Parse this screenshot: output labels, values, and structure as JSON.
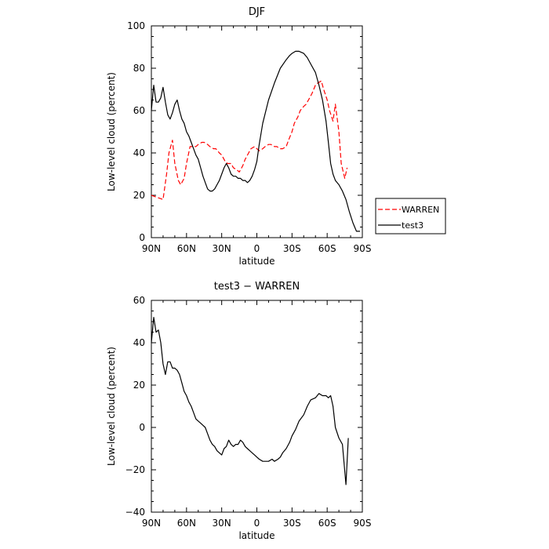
{
  "chart_data": [
    {
      "type": "line",
      "title": "DJF",
      "xlabel": "latitude",
      "ylabel": "Low-level cloud (percent)",
      "xlim": [
        90,
        -90
      ],
      "ylim": [
        0,
        100
      ],
      "x_ticks": [
        90,
        60,
        30,
        0,
        -30,
        -60,
        -90
      ],
      "x_tick_labels": [
        "90N",
        "60N",
        "30N",
        "0",
        "30S",
        "60S",
        "90S"
      ],
      "y_ticks": [
        0,
        20,
        40,
        60,
        80,
        100
      ],
      "y_tick_labels": [
        "0",
        "20",
        "40",
        "60",
        "80",
        "100"
      ],
      "grid": false,
      "legend": {
        "placement": "right-outside",
        "entries": [
          "WARREN",
          "test3"
        ]
      },
      "series": [
        {
          "name": "WARREN",
          "color": "#ff0000",
          "dash": "dashed",
          "x": [
            90,
            85,
            80,
            77,
            75,
            72,
            70,
            67,
            65,
            62,
            60,
            57,
            55,
            52,
            50,
            47,
            45,
            42,
            40,
            37,
            35,
            32,
            30,
            27,
            25,
            22,
            20,
            17,
            15,
            12,
            10,
            7,
            5,
            2,
            0,
            -2,
            -5,
            -7,
            -10,
            -12,
            -15,
            -17,
            -20,
            -22,
            -25,
            -27,
            -30,
            -32,
            -35,
            -37,
            -40,
            -42,
            -45,
            -47,
            -50,
            -52,
            -55,
            -57,
            -60,
            -62,
            -65,
            -67,
            -70,
            -72,
            -75,
            -77
          ],
          "y": [
            20,
            19,
            18,
            30,
            40,
            46,
            35,
            27,
            25,
            28,
            35,
            43,
            43,
            43,
            44,
            45,
            45,
            44,
            43,
            42,
            42,
            40,
            39,
            36,
            35,
            35,
            33,
            32,
            31,
            34,
            37,
            40,
            42,
            43,
            42,
            41,
            42,
            43,
            44,
            44,
            43,
            43,
            42,
            42,
            43,
            46,
            50,
            54,
            57,
            60,
            62,
            63,
            66,
            68,
            72,
            73,
            74,
            70,
            65,
            60,
            55,
            63,
            50,
            35,
            28,
            33
          ]
        },
        {
          "name": "test3",
          "color": "#000000",
          "dash": "solid",
          "x": [
            90,
            88,
            86,
            84,
            82,
            80,
            78,
            76,
            74,
            72,
            70,
            68,
            66,
            64,
            62,
            60,
            58,
            56,
            54,
            52,
            50,
            48,
            46,
            44,
            42,
            40,
            38,
            36,
            34,
            32,
            30,
            28,
            26,
            24,
            22,
            20,
            18,
            16,
            14,
            12,
            10,
            8,
            6,
            4,
            2,
            0,
            -2,
            -5,
            -10,
            -15,
            -20,
            -25,
            -28,
            -30,
            -33,
            -36,
            -40,
            -43,
            -46,
            -50,
            -53,
            -56,
            -59,
            -61,
            -63,
            -65,
            -67,
            -70,
            -73,
            -76,
            -79,
            -82,
            -85,
            -88
          ],
          "y": [
            60,
            72,
            64,
            64,
            66,
            71,
            64,
            58,
            56,
            59,
            63,
            65,
            60,
            56,
            54,
            50,
            48,
            45,
            42,
            39,
            37,
            33,
            29,
            26,
            23,
            22,
            22,
            23,
            25,
            27,
            30,
            33,
            35,
            33,
            30,
            29,
            29,
            28,
            28,
            27,
            27,
            26,
            27,
            29,
            32,
            36,
            44,
            54,
            65,
            73,
            80,
            84,
            86,
            87,
            88,
            88,
            87,
            85,
            82,
            78,
            72,
            65,
            55,
            45,
            35,
            30,
            27,
            25,
            22,
            18,
            12,
            7,
            3,
            3
          ]
        }
      ]
    },
    {
      "type": "line",
      "title": "test3 − WARREN",
      "xlabel": "latitude",
      "ylabel": "Low-level cloud (percent)",
      "xlim": [
        90,
        -90
      ],
      "ylim": [
        -40,
        60
      ],
      "x_ticks": [
        90,
        60,
        30,
        0,
        -30,
        -60,
        -90
      ],
      "x_tick_labels": [
        "90N",
        "60N",
        "30N",
        "0",
        "30S",
        "60S",
        "90S"
      ],
      "y_ticks": [
        -40,
        -20,
        0,
        20,
        40,
        60
      ],
      "y_tick_labels": [
        "−40",
        "−20",
        "0",
        "20",
        "40",
        "60"
      ],
      "grid": false,
      "series": [
        {
          "color": "#000000",
          "dash": "solid",
          "x": [
            90,
            88,
            86,
            84,
            82,
            80,
            78,
            76,
            74,
            72,
            70,
            68,
            66,
            64,
            62,
            60,
            58,
            56,
            54,
            52,
            50,
            48,
            46,
            44,
            42,
            40,
            38,
            36,
            34,
            32,
            30,
            28,
            26,
            24,
            22,
            20,
            18,
            16,
            14,
            12,
            10,
            8,
            6,
            4,
            2,
            0,
            -2,
            -5,
            -8,
            -10,
            -13,
            -15,
            -18,
            -20,
            -22,
            -25,
            -28,
            -30,
            -33,
            -36,
            -40,
            -43,
            -46,
            -50,
            -53,
            -56,
            -59,
            -61,
            -63,
            -65,
            -67,
            -70,
            -73,
            -76,
            -78
          ],
          "y": [
            40,
            52,
            45,
            46,
            40,
            30,
            25,
            31,
            31,
            28,
            28,
            27,
            25,
            21,
            17,
            15,
            12,
            10,
            7,
            4,
            3,
            2,
            1,
            0,
            -3,
            -6,
            -8,
            -9,
            -11,
            -12,
            -13,
            -10,
            -9,
            -6,
            -8,
            -9,
            -8,
            -8,
            -6,
            -7,
            -9,
            -10,
            -11,
            -12,
            -13,
            -14,
            -15,
            -16,
            -16,
            -16,
            -15,
            -16,
            -15,
            -14,
            -12,
            -10,
            -7,
            -4,
            -1,
            3,
            6,
            10,
            13,
            14,
            16,
            15,
            15,
            14,
            15,
            10,
            0,
            -5,
            -8,
            -27,
            -5
          ]
        }
      ]
    }
  ]
}
